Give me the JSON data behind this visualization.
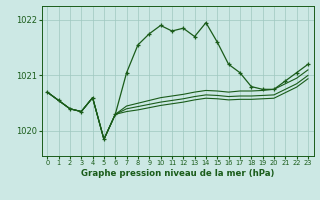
{
  "bg_color": "#cce8e4",
  "line_color": "#1a5c1a",
  "grid_color": "#9fc8c0",
  "xlabel": "Graphe pression niveau de la mer (hPa)",
  "ylim": [
    1019.55,
    1022.25
  ],
  "xlim": [
    -0.5,
    23.5
  ],
  "yticks": [
    1020,
    1021,
    1022
  ],
  "xticks": [
    0,
    1,
    2,
    3,
    4,
    5,
    6,
    7,
    8,
    9,
    10,
    11,
    12,
    13,
    14,
    15,
    16,
    17,
    18,
    19,
    20,
    21,
    22,
    23
  ],
  "series_main": [
    1020.7,
    1020.55,
    1020.4,
    1020.35,
    1020.6,
    1019.85,
    1020.3,
    1021.05,
    1021.55,
    1021.75,
    1021.9,
    1021.8,
    1021.85,
    1021.7,
    1021.95,
    1021.6,
    1021.2,
    1021.05,
    1020.8,
    1020.75,
    1020.75,
    1020.9,
    1021.05,
    1021.2
  ],
  "series_trend1": [
    1020.7,
    1020.55,
    1020.4,
    1020.35,
    1020.6,
    1019.85,
    1020.3,
    1020.45,
    1020.5,
    1020.55,
    1020.6,
    1020.63,
    1020.66,
    1020.7,
    1020.73,
    1020.72,
    1020.7,
    1020.72,
    1020.72,
    1020.73,
    1020.75,
    1020.85,
    1020.95,
    1021.1
  ],
  "series_trend2": [
    1020.7,
    1020.55,
    1020.4,
    1020.35,
    1020.6,
    1019.85,
    1020.3,
    1020.4,
    1020.44,
    1020.48,
    1020.52,
    1020.55,
    1020.58,
    1020.62,
    1020.65,
    1020.64,
    1020.62,
    1020.63,
    1020.63,
    1020.64,
    1020.65,
    1020.75,
    1020.85,
    1021.0
  ],
  "series_trend3": [
    1020.7,
    1020.55,
    1020.4,
    1020.35,
    1020.6,
    1019.85,
    1020.3,
    1020.35,
    1020.38,
    1020.42,
    1020.46,
    1020.49,
    1020.52,
    1020.56,
    1020.59,
    1020.58,
    1020.56,
    1020.57,
    1020.57,
    1020.58,
    1020.59,
    1020.69,
    1020.79,
    1020.94
  ]
}
